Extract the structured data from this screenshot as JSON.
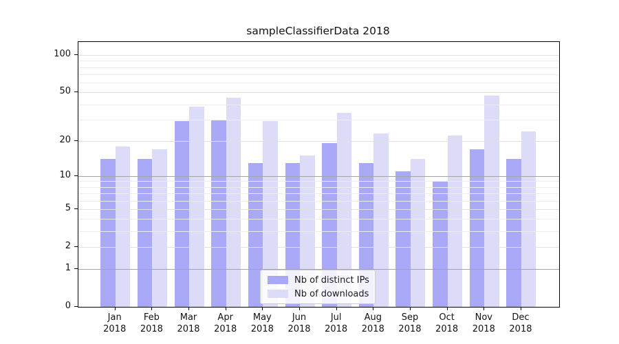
{
  "title": "sampleClassifierData 2018",
  "colors": {
    "ips_bar": "#a9a9f8",
    "downloads_bar": "#dcdcf9",
    "grid_decade": "#a3a3a3",
    "grid_major": "#e0e0e0",
    "grid_minor": "#ececec",
    "spine": "#000000",
    "legend_border": "#cccccc",
    "legend_bg": "rgba(255,255,255,0.85)"
  },
  "chart_data": {
    "type": "bar",
    "title": "sampleClassifierData 2018",
    "categories": [
      "Jan",
      "Feb",
      "Mar",
      "Apr",
      "May",
      "Jun",
      "Jul",
      "Aug",
      "Sep",
      "Oct",
      "Nov",
      "Dec"
    ],
    "category_year": "2018",
    "series": [
      {
        "name": "Nb of distinct IPs",
        "values": [
          14,
          14,
          29,
          30,
          13,
          13,
          19,
          13,
          11,
          9,
          17,
          14
        ]
      },
      {
        "name": "Nb of downloads",
        "values": [
          18,
          17,
          38,
          45,
          29,
          15,
          34,
          23,
          14,
          22,
          47,
          24
        ]
      }
    ],
    "xlabel": "",
    "ylabel": "",
    "yscale": "log1p",
    "ylim": [
      0,
      127
    ],
    "yticks": [
      100,
      50,
      20,
      10,
      5,
      2,
      1,
      0
    ],
    "decade_gridlines": [
      10,
      1
    ],
    "major_gridlines": [
      100,
      50,
      20,
      5,
      2
    ],
    "minor_gridlines": [
      90,
      80,
      70,
      60,
      40,
      30,
      9,
      8,
      7,
      6,
      4,
      3
    ],
    "grid": true,
    "legend_position": "lower center"
  }
}
